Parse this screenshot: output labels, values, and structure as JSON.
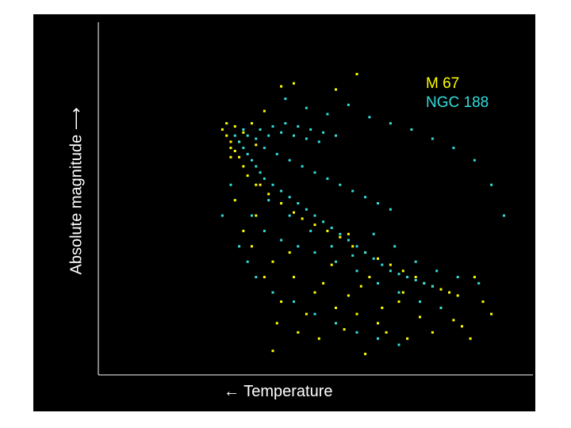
{
  "chart_data": {
    "type": "scatter",
    "xlabel": "← Temperature",
    "ylabel": "Absolute magnitude ⟶",
    "xlim": [
      0,
      100
    ],
    "ylim": [
      0,
      100
    ],
    "legend_position": "top-right",
    "grid": false,
    "series": [
      {
        "name": "M 67",
        "color": "#ffff00",
        "points": [
          [
            29,
            76
          ],
          [
            30,
            74
          ],
          [
            30,
            72
          ],
          [
            31,
            71
          ],
          [
            32,
            69
          ],
          [
            33,
            66
          ],
          [
            34,
            63
          ],
          [
            36,
            60
          ],
          [
            39,
            57
          ],
          [
            42,
            54
          ],
          [
            45,
            51
          ],
          [
            47,
            49
          ],
          [
            50,
            47
          ],
          [
            53,
            45
          ],
          [
            56,
            43
          ],
          [
            59,
            40
          ],
          [
            62,
            38
          ],
          [
            65,
            36
          ],
          [
            68,
            34
          ],
          [
            71,
            32
          ],
          [
            74,
            30
          ],
          [
            76,
            28
          ],
          [
            78,
            27
          ],
          [
            80,
            26
          ],
          [
            82,
            25
          ],
          [
            84,
            24
          ],
          [
            29,
            80
          ],
          [
            28,
            78
          ],
          [
            31,
            79
          ],
          [
            32,
            74
          ],
          [
            30,
            69
          ],
          [
            33,
            77
          ],
          [
            35,
            80
          ],
          [
            36,
            73
          ],
          [
            38,
            84
          ],
          [
            42,
            92
          ],
          [
            45,
            93
          ],
          [
            55,
            91
          ],
          [
            60,
            96
          ],
          [
            35,
            40
          ],
          [
            40,
            35
          ],
          [
            45,
            30
          ],
          [
            50,
            25
          ],
          [
            55,
            20
          ],
          [
            60,
            18
          ],
          [
            65,
            15
          ],
          [
            70,
            22
          ],
          [
            75,
            17
          ],
          [
            80,
            20
          ],
          [
            85,
            14
          ],
          [
            38,
            30
          ],
          [
            42,
            22
          ],
          [
            48,
            18
          ],
          [
            52,
            28
          ],
          [
            58,
            24
          ],
          [
            63,
            30
          ],
          [
            67,
            12
          ],
          [
            72,
            10
          ],
          [
            78,
            12
          ],
          [
            83,
            16
          ],
          [
            36,
            50
          ],
          [
            33,
            45
          ],
          [
            31,
            55
          ],
          [
            41,
            15
          ],
          [
            46,
            12
          ],
          [
            51,
            10
          ],
          [
            57,
            13
          ],
          [
            61,
            27
          ],
          [
            66,
            20
          ],
          [
            71,
            25
          ],
          [
            88,
            30
          ],
          [
            90,
            22
          ],
          [
            92,
            18
          ],
          [
            87,
            10
          ],
          [
            62,
            5
          ],
          [
            40,
            6
          ],
          [
            58,
            44
          ],
          [
            54,
            34
          ],
          [
            44,
            38
          ],
          [
            37,
            60
          ]
        ]
      },
      {
        "name": "NGC 188",
        "color": "#33dddd",
        "points": [
          [
            31,
            76
          ],
          [
            32,
            74
          ],
          [
            33,
            72
          ],
          [
            34,
            70
          ],
          [
            35,
            68
          ],
          [
            36,
            66
          ],
          [
            37,
            64
          ],
          [
            38,
            62
          ],
          [
            40,
            60
          ],
          [
            42,
            58
          ],
          [
            44,
            56
          ],
          [
            46,
            54
          ],
          [
            48,
            52
          ],
          [
            50,
            50
          ],
          [
            52,
            48
          ],
          [
            54,
            46
          ],
          [
            56,
            44
          ],
          [
            58,
            42
          ],
          [
            60,
            40
          ],
          [
            62,
            38
          ],
          [
            64,
            36
          ],
          [
            66,
            34
          ],
          [
            68,
            32
          ],
          [
            70,
            31
          ],
          [
            72,
            30
          ],
          [
            74,
            29
          ],
          [
            76,
            28
          ],
          [
            78,
            27
          ],
          [
            34,
            76
          ],
          [
            37,
            78
          ],
          [
            40,
            79
          ],
          [
            43,
            80
          ],
          [
            46,
            79
          ],
          [
            49,
            78
          ],
          [
            52,
            77
          ],
          [
            55,
            76
          ],
          [
            33,
            78
          ],
          [
            36,
            75
          ],
          [
            39,
            76
          ],
          [
            42,
            77
          ],
          [
            45,
            76
          ],
          [
            48,
            75
          ],
          [
            51,
            74
          ],
          [
            38,
            72
          ],
          [
            41,
            70
          ],
          [
            44,
            68
          ],
          [
            47,
            66
          ],
          [
            50,
            64
          ],
          [
            53,
            62
          ],
          [
            56,
            60
          ],
          [
            59,
            58
          ],
          [
            62,
            56
          ],
          [
            65,
            54
          ],
          [
            68,
            52
          ],
          [
            35,
            50
          ],
          [
            38,
            45
          ],
          [
            42,
            42
          ],
          [
            46,
            40
          ],
          [
            50,
            38
          ],
          [
            55,
            35
          ],
          [
            60,
            32
          ],
          [
            65,
            28
          ],
          [
            70,
            25
          ],
          [
            75,
            22
          ],
          [
            80,
            20
          ],
          [
            36,
            30
          ],
          [
            40,
            25
          ],
          [
            45,
            22
          ],
          [
            50,
            18
          ],
          [
            55,
            15
          ],
          [
            60,
            12
          ],
          [
            65,
            10
          ],
          [
            70,
            8
          ],
          [
            43,
            88
          ],
          [
            48,
            85
          ],
          [
            53,
            83
          ],
          [
            58,
            86
          ],
          [
            63,
            82
          ],
          [
            68,
            80
          ],
          [
            73,
            78
          ],
          [
            78,
            75
          ],
          [
            83,
            72
          ],
          [
            88,
            68
          ],
          [
            92,
            60
          ],
          [
            95,
            50
          ],
          [
            30,
            60
          ],
          [
            28,
            50
          ],
          [
            32,
            40
          ],
          [
            34,
            35
          ],
          [
            39,
            55
          ],
          [
            44,
            50
          ],
          [
            49,
            45
          ],
          [
            54,
            40
          ],
          [
            59,
            37
          ],
          [
            64,
            44
          ],
          [
            69,
            40
          ],
          [
            74,
            35
          ],
          [
            79,
            32
          ],
          [
            84,
            30
          ],
          [
            89,
            28
          ]
        ]
      }
    ]
  }
}
